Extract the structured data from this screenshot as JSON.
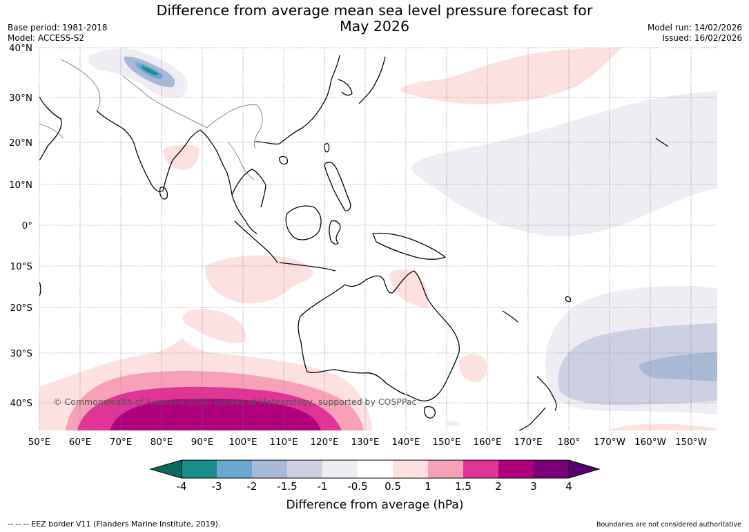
{
  "title_line1": "Difference from average mean sea level pressure forecast for",
  "title_line2": "May 2026",
  "base_period": "Base period: 1981-2018",
  "model": "Model: ACCESS-S2",
  "model_run": "Model run: 14/02/2026",
  "issued": "Issued: 16/02/2026",
  "copyright": "© Commonwealth of Australia 2026, Bureau of Meteorology, supported by COSPPac",
  "lat_labels": [
    "40°N",
    "30°N",
    "20°N",
    "10°N",
    "0°",
    "10°S",
    "20°S",
    "30°S",
    "40°S"
  ],
  "lon_labels": [
    "50°E",
    "60°E",
    "70°E",
    "80°E",
    "90°E",
    "100°E",
    "110°E",
    "120°E",
    "130°E",
    "140°E",
    "150°E",
    "160°E",
    "170°E",
    "180°",
    "170°W",
    "160°W",
    "150°W"
  ],
  "colorbar": {
    "ticks": [
      "-4",
      "-3",
      "-2",
      "-1.5",
      "-1",
      "-0.5",
      "0.5",
      "1",
      "1.5",
      "2",
      "3",
      "4"
    ],
    "colors": [
      "#1a8c8c",
      "#6aa8d0",
      "#a8b9d8",
      "#cdd0e3",
      "#f0ecf3",
      "#ffffff",
      "#fde0e0",
      "#f7a1b8",
      "#e03497",
      "#b0007e",
      "#7a007a"
    ],
    "under_color": "#0a6a60",
    "over_color": "#55006e",
    "label": "Difference from average (hPa)"
  },
  "eez_legend": "--  --  -- EEZ border V11 (Flanders Marine Institute, 2019).",
  "disclaimer": "Boundaries are not considered authoritative"
}
